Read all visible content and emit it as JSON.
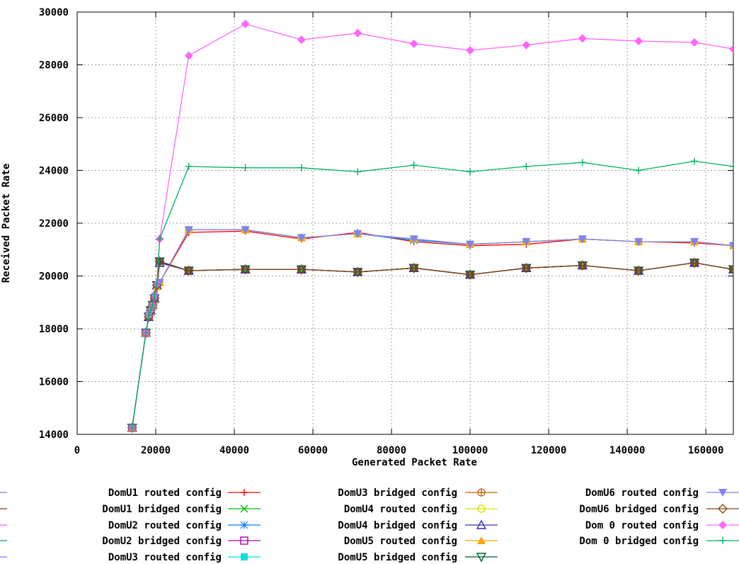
{
  "chart_data": {
    "type": "line",
    "title": "",
    "xlabel": "Generated Packet Rate",
    "ylabel": "Received Packet Rate",
    "xlim": [
      0,
      167000
    ],
    "ylim": [
      14000,
      30000
    ],
    "xticks": [
      0,
      20000,
      40000,
      60000,
      80000,
      100000,
      120000,
      140000,
      160000
    ],
    "yticks": [
      14000,
      16000,
      18000,
      20000,
      22000,
      24000,
      26000,
      28000,
      30000
    ],
    "grid": true,
    "legend_position": "bottom",
    "colors": {
      "routed": "#ff0000",
      "bridged_brown": "#a0522d",
      "dom0_routed": "#ff66ff",
      "dom0_bridged": "#00b060",
      "marker_gray": "#a0a0a0"
    },
    "series": [
      {
        "name": "DomU1 routed config",
        "color": "#ff0000",
        "marker": "plus",
        "x": [
          14000,
          17500,
          18200,
          18700,
          19200,
          19700,
          20300,
          21000,
          28400,
          42800,
          57100,
          71400,
          85700,
          100000,
          114300,
          128600,
          142900,
          157100,
          167000
        ],
        "y": [
          14250,
          17850,
          18400,
          18600,
          18850,
          19050,
          19500,
          19750,
          21650,
          21700,
          21400,
          21650,
          21300,
          21150,
          21200,
          21400,
          21300,
          21250,
          21150
        ]
      },
      {
        "name": "DomU1 bridged config",
        "color": "#00c000",
        "marker": "cross",
        "x": [
          14000,
          17500,
          18200,
          18700,
          19200,
          19700,
          20300,
          21000,
          28400,
          42800,
          57100,
          71400,
          85700,
          100000,
          114300,
          128600,
          142900,
          157100,
          167000
        ],
        "y": [
          14250,
          17850,
          18500,
          18700,
          18900,
          19100,
          19600,
          20550,
          20200,
          20250,
          20250,
          20150,
          20300,
          20050,
          20300,
          20400,
          20200,
          20500,
          20250
        ]
      },
      {
        "name": "DomU2 routed config",
        "color": "#0080ff",
        "marker": "star",
        "x": [
          14000,
          17500,
          18200,
          18700,
          19200,
          19700,
          20300,
          21000,
          28400,
          42800,
          57100,
          71400,
          85700,
          100000,
          114300,
          128600,
          142900,
          157100,
          167000
        ],
        "y": [
          14250,
          17850,
          18500,
          18650,
          18900,
          19100,
          19600,
          19750,
          21750,
          21750,
          21450,
          21600,
          21350,
          21200,
          21300,
          21400,
          21300,
          21300,
          21150
        ]
      },
      {
        "name": "DomU2 bridged config",
        "color": "#b000b0",
        "marker": "square",
        "x": [
          14000,
          17500,
          18200,
          18700,
          19200,
          19700,
          20300,
          21000,
          28400,
          42800,
          57100,
          71400,
          85700,
          100000,
          114300,
          128600,
          142900,
          157100,
          167000
        ],
        "y": [
          14250,
          17850,
          18450,
          18650,
          18900,
          19150,
          19650,
          20500,
          20200,
          20250,
          20250,
          20150,
          20300,
          20050,
          20300,
          20400,
          20200,
          20500,
          20250
        ]
      },
      {
        "name": "DomU3 routed config",
        "color": "#00e0e0",
        "marker": "filled-square",
        "x": [
          14000,
          17500,
          18200,
          18700,
          19200,
          19700,
          20300,
          21000,
          28400,
          42800,
          57100,
          71400,
          85700,
          100000,
          114300,
          128600,
          142900,
          157100,
          167000
        ],
        "y": [
          14250,
          17850,
          18500,
          18650,
          18900,
          19100,
          19600,
          19750,
          21750,
          21750,
          21450,
          21600,
          21400,
          21200,
          21300,
          21400,
          21300,
          21300,
          21150
        ]
      },
      {
        "name": "DomU3 bridged config",
        "color": "#c06000",
        "marker": "circle-plus",
        "x": [
          14000,
          17500,
          18200,
          18700,
          19200,
          19700,
          20300,
          21000,
          28400,
          42800,
          57100,
          71400,
          85700,
          100000,
          114300,
          128600,
          142900,
          157100,
          167000
        ],
        "y": [
          14250,
          17850,
          18450,
          18700,
          18900,
          19150,
          19650,
          20550,
          20200,
          20250,
          20250,
          20150,
          20300,
          20050,
          20300,
          20400,
          20200,
          20500,
          20250
        ]
      },
      {
        "name": "DomU4 routed config",
        "color": "#e0e000",
        "marker": "circle",
        "x": [
          14000,
          17500,
          18200,
          18700,
          19200,
          19700,
          20300,
          21000,
          28400,
          42800,
          57100,
          71400,
          85700,
          100000,
          114300,
          128600,
          142900,
          157100,
          167000
        ],
        "y": [
          14250,
          17850,
          18500,
          18650,
          18900,
          19100,
          19600,
          19750,
          21750,
          21750,
          21450,
          21600,
          21400,
          21200,
          21300,
          21400,
          21300,
          21300,
          21150
        ]
      },
      {
        "name": "DomU4 bridged config",
        "color": "#3030b0",
        "marker": "triangle",
        "x": [
          14000,
          17500,
          18200,
          18700,
          19200,
          19700,
          20300,
          21000,
          28400,
          42800,
          57100,
          71400,
          85700,
          100000,
          114300,
          128600,
          142900,
          157100,
          167000
        ],
        "y": [
          14250,
          17850,
          18450,
          18700,
          18900,
          19150,
          19650,
          20500,
          20200,
          20250,
          20250,
          20150,
          20300,
          20050,
          20300,
          20400,
          20200,
          20500,
          20250
        ]
      },
      {
        "name": "DomU5 routed config",
        "color": "#ffa500",
        "marker": "filled-triangle",
        "x": [
          14000,
          17500,
          18200,
          18700,
          19200,
          19700,
          20300,
          21000,
          28400,
          42800,
          57100,
          71400,
          85700,
          100000,
          114300,
          128600,
          142900,
          157100,
          167000
        ],
        "y": [
          14250,
          17850,
          18500,
          18650,
          18900,
          19100,
          19600,
          19750,
          21750,
          21750,
          21450,
          21600,
          21400,
          21200,
          21300,
          21400,
          21300,
          21300,
          21150
        ]
      },
      {
        "name": "DomU5 bridged config",
        "color": "#006030",
        "marker": "triangle-down",
        "x": [
          14000,
          17500,
          18200,
          18700,
          19200,
          19700,
          20300,
          21000,
          28400,
          42800,
          57100,
          71400,
          85700,
          100000,
          114300,
          128600,
          142900,
          157100,
          167000
        ],
        "y": [
          14250,
          17850,
          18450,
          18700,
          18900,
          19150,
          19650,
          20550,
          20200,
          20250,
          20250,
          20150,
          20300,
          20050,
          20300,
          20400,
          20200,
          20500,
          20250
        ]
      },
      {
        "name": "DomU6 routed config",
        "color": "#8080ff",
        "marker": "filled-triangle-down",
        "x": [
          14000,
          17500,
          18200,
          18700,
          19200,
          19700,
          20300,
          21000,
          28400,
          42800,
          57100,
          71400,
          85700,
          100000,
          114300,
          128600,
          142900,
          157100,
          167000
        ],
        "y": [
          14250,
          17850,
          18500,
          18650,
          18900,
          19100,
          19600,
          19750,
          21750,
          21750,
          21450,
          21600,
          21400,
          21200,
          21300,
          21400,
          21300,
          21300,
          21150
        ]
      },
      {
        "name": "DomU6 bridged config",
        "color": "#8b4513",
        "marker": "diamond",
        "x": [
          14000,
          17500,
          18200,
          18700,
          19200,
          19700,
          20300,
          21000,
          28400,
          42800,
          57100,
          71400,
          85700,
          100000,
          114300,
          128600,
          142900,
          157100,
          167000
        ],
        "y": [
          14250,
          17850,
          18450,
          18700,
          18900,
          19150,
          19650,
          20550,
          20200,
          20250,
          20250,
          20150,
          20300,
          20050,
          20300,
          20400,
          20200,
          20500,
          20250
        ]
      },
      {
        "name": "Dom 0 routed config",
        "color": "#ff66ff",
        "marker": "filled-diamond",
        "x": [
          14000,
          17500,
          18200,
          18700,
          19200,
          19700,
          20300,
          21000,
          28400,
          42800,
          57100,
          71400,
          85700,
          100000,
          114300,
          128600,
          142900,
          157100,
          167000
        ],
        "y": [
          14250,
          17850,
          18500,
          18700,
          18900,
          19300,
          19700,
          21400,
          28350,
          29550,
          28950,
          29200,
          28800,
          28550,
          28750,
          29000,
          28900,
          28850,
          28600
        ]
      },
      {
        "name": "Dom 0 bridged config",
        "color": "#00b060",
        "marker": "plus",
        "x": [
          14000,
          17500,
          18200,
          18700,
          19200,
          19700,
          20300,
          21000,
          28400,
          42800,
          57100,
          71400,
          85700,
          100000,
          114300,
          128600,
          142900,
          157100,
          167000
        ],
        "y": [
          14250,
          17850,
          18500,
          18700,
          18900,
          19300,
          19700,
          21400,
          24150,
          24100,
          24100,
          23950,
          24200,
          23950,
          24150,
          24300,
          24000,
          24350,
          24150
        ]
      }
    ]
  }
}
